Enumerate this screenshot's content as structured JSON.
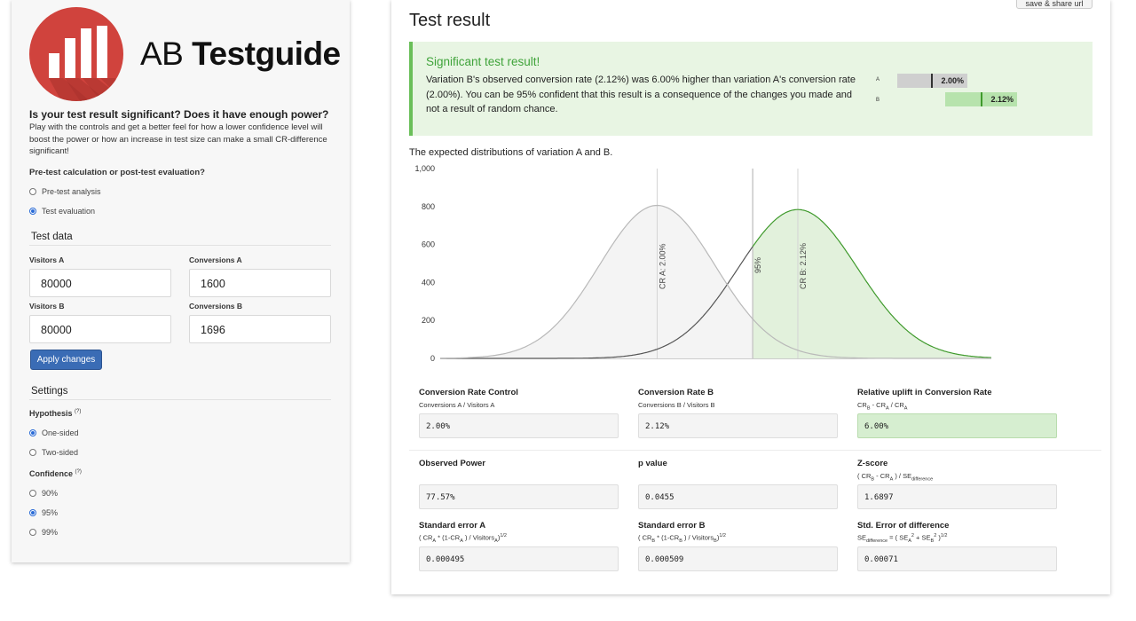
{
  "logo": {
    "light": "AB ",
    "bold": "Testguide"
  },
  "intro": {
    "title": "Is your test result significant? Does it have enough power?",
    "body": "Play with the controls and get a better feel for how a lower confidence level will boost the power or how an increase in test size can make a small CR-difference significant!"
  },
  "mode": {
    "question": "Pre-test calculation or post-test evaluation?",
    "options": [
      "Pre-test analysis",
      "Test evaluation"
    ],
    "selected": "Test evaluation"
  },
  "test_data": {
    "heading": "Test data",
    "visitors_a_label": "Visitors A",
    "visitors_a": "80000",
    "conversions_a_label": "Conversions A",
    "conversions_a": "1600",
    "visitors_b_label": "Visitors B",
    "visitors_b": "80000",
    "conversions_b_label": "Conversions B",
    "conversions_b": "1696",
    "apply_label": "Apply changes"
  },
  "settings": {
    "heading": "Settings",
    "hypothesis_label": "Hypothesis",
    "hypothesis_help": "(?)",
    "hypothesis_options": [
      "One-sided",
      "Two-sided"
    ],
    "hypothesis_selected": "One-sided",
    "confidence_label": "Confidence",
    "confidence_help": "(?)",
    "confidence_options": [
      "90%",
      "95%",
      "99%"
    ],
    "confidence_selected": "95%"
  },
  "result": {
    "title": "Test result",
    "share_label": "save & share url",
    "alert_title": "Significant test result!",
    "alert_body": "Variation B's observed conversion rate (2.12%) was 6.00% higher than variation A's conversion rate (2.00%). You can be 95% confident that this result is a consequence of the changes you made and not a result of random chance.",
    "mini_a_label": "A",
    "mini_a_value": "2.00%",
    "mini_b_label": "B",
    "mini_b_value": "2.12%"
  },
  "chart_title": "The expected distributions of variation A and B.",
  "chart_data": {
    "type": "area",
    "title": "The expected distributions of variation A and B.",
    "ylim": [
      0,
      1000
    ],
    "y_ticks": [
      "0",
      "200",
      "400",
      "600",
      "800",
      "1,000"
    ],
    "series": [
      {
        "name": "CR A: 2.00%",
        "mean": 0.02,
        "se": 0.000495,
        "peak": 806,
        "color": "#b9b9b9"
      },
      {
        "name": "CR B: 2.12%",
        "mean": 0.0212,
        "se": 0.000509,
        "peak": 784,
        "color": "#3f9a2c"
      }
    ],
    "markers": [
      {
        "label": "CR A: 2.00%",
        "x": 0.02
      },
      {
        "label": "95%",
        "x": 0.020815
      },
      {
        "label": "CR B: 2.12%",
        "x": 0.0212
      }
    ],
    "grid": false
  },
  "stats": {
    "cr_control_label": "Conversion Rate Control",
    "cr_control_sub": "Conversions A / Visitors A",
    "cr_control": "2.00%",
    "cr_b_label": "Conversion Rate B",
    "cr_b_sub": "Conversions B / Visitors B",
    "cr_b": "2.12%",
    "uplift_label": "Relative uplift in Conversion Rate",
    "uplift": "6.00%",
    "power_label": "Observed Power",
    "power": "77.57%",
    "p_label": "p value",
    "p": "0.0455",
    "z_label": "Z-score",
    "z": "1.6897",
    "se_a_label": "Standard error A",
    "se_a": "0.000495",
    "se_b_label": "Standard error B",
    "se_b": "0.000509",
    "se_diff_label": "Std. Error of difference",
    "se_diff": "0.00071"
  },
  "colors": {
    "accent_red": "#d0433d",
    "button_blue": "#3a6cb5",
    "success_green": "#3fa33a",
    "success_bg": "#e8f5e3"
  }
}
